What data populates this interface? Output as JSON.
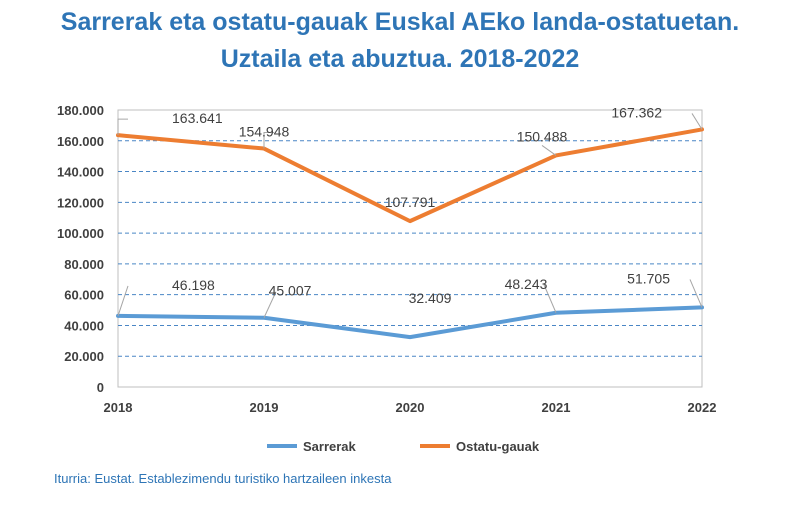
{
  "chart_data": {
    "type": "line",
    "title_line1": "Sarrerak eta ostatu-gauak Euskal AEko landa-ostatuetan.",
    "title_line2": "Uztaila eta abuztua. 2018-2022",
    "categories": [
      "2018",
      "2019",
      "2020",
      "2021",
      "2022"
    ],
    "ylim": [
      0,
      180000
    ],
    "y_ticks": [
      0,
      20000,
      40000,
      60000,
      80000,
      100000,
      120000,
      140000,
      160000,
      180000
    ],
    "y_tick_labels": [
      "0",
      "20.000",
      "40.000",
      "60.000",
      "80.000",
      "100.000",
      "120.000",
      "140.000",
      "160.000",
      "180.000"
    ],
    "grid": true,
    "legend_position": "bottom",
    "series": [
      {
        "name": "Sarrerak",
        "color": "#5B9BD5",
        "values": [
          46198,
          45007,
          32409,
          48243,
          51705
        ],
        "labels": [
          "46.198",
          "45.007",
          "32.409",
          "48.243",
          "51.705"
        ]
      },
      {
        "name": "Ostatu-gauak",
        "color": "#ED7D31",
        "values": [
          163641,
          154948,
          107791,
          150488,
          167362
        ],
        "labels": [
          "163.641",
          "154.948",
          "107.791",
          "150.488",
          "167.362"
        ]
      }
    ]
  },
  "source": "Iturria: Eustat. Establezimendu turistiko hartzaileen inkesta"
}
